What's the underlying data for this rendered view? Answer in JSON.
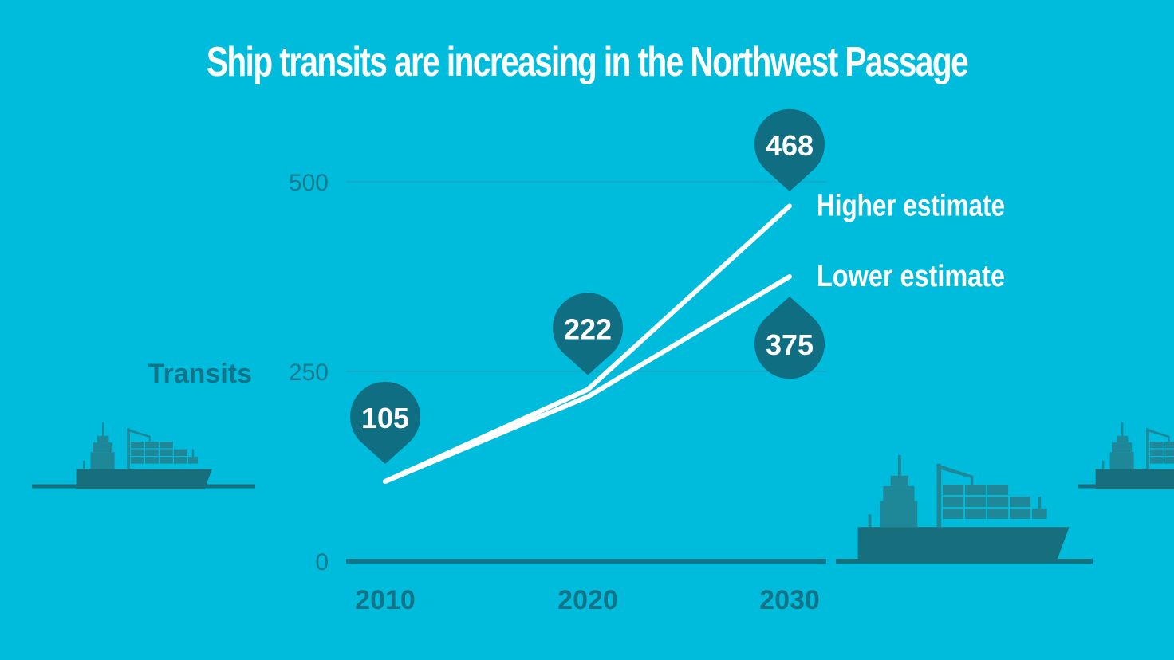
{
  "colors": {
    "background": "#00bcdc",
    "line": "#ffffff",
    "pin": "#0f6e82",
    "axis": "#137489",
    "grid": "#19a9c6",
    "ship": "#1e8798",
    "ship_dark": "#176e7d"
  },
  "icons": [
    "container-ship-icon"
  ],
  "chart_data": {
    "type": "line",
    "title": "Ship transits are increasing in the Northwest Passage",
    "ylabel": "Transits",
    "xlabel": "",
    "categories": [
      "2010",
      "2020",
      "2030"
    ],
    "x": [
      2010,
      2020,
      2030
    ],
    "ylim": [
      0,
      500
    ],
    "yticks": [
      0,
      250,
      500
    ],
    "grid": true,
    "series": [
      {
        "name": "Higher estimate",
        "values": [
          105,
          222,
          468
        ]
      },
      {
        "name": "Lower estimate",
        "values": [
          105,
          222,
          375
        ]
      }
    ],
    "annotations": [
      {
        "x": 2010,
        "value": 105,
        "label": "105",
        "placement": "above"
      },
      {
        "x": 2020,
        "value": 222,
        "label": "222",
        "placement": "above"
      },
      {
        "x": 2030,
        "value": 468,
        "label": "468",
        "placement": "above"
      },
      {
        "x": 2030,
        "value": 375,
        "label": "375",
        "placement": "below"
      }
    ]
  }
}
